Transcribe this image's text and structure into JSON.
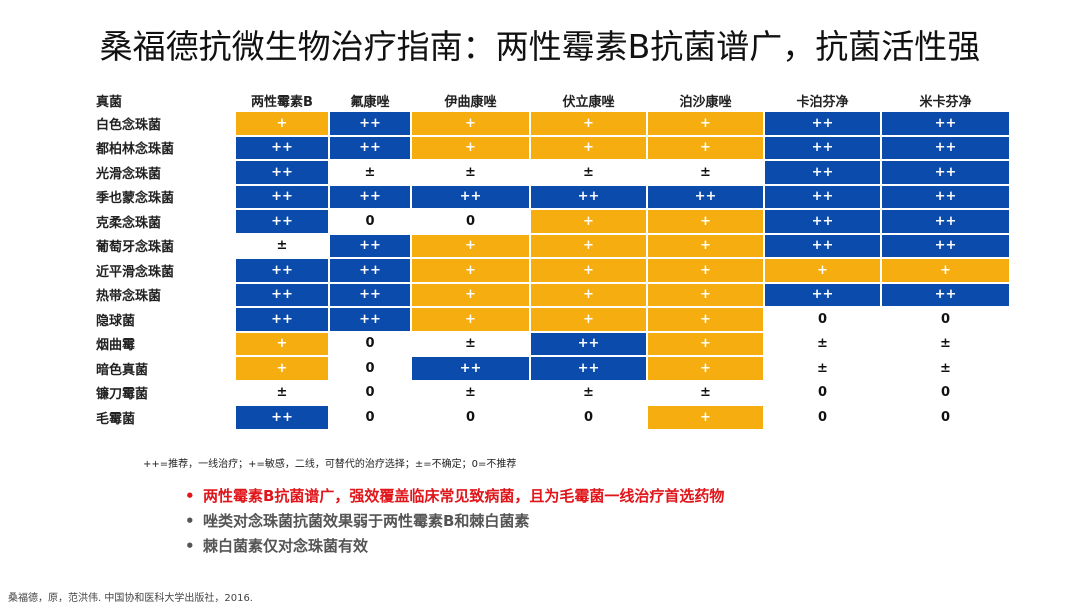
{
  "title": "桑福德抗微生物治疗指南：两性霉素B抗菌谱广，抗菌活性强",
  "colors": {
    "strong": "#0a4bab",
    "moderate": "#f5ad0f",
    "none": "#ffffff"
  },
  "table": {
    "corner": "真菌",
    "columns": [
      "两性霉素B",
      "氟康唑",
      "伊曲康唑",
      "伏立康唑",
      "泊沙康唑",
      "卡泊芬净",
      "米卡芬净"
    ],
    "rows": [
      {
        "name": "白色念珠菌",
        "cells": [
          "+",
          "++",
          "+",
          "+",
          "+",
          "++",
          "++"
        ]
      },
      {
        "name": "都柏林念珠菌",
        "cells": [
          "++",
          "++",
          "+",
          "+",
          "+",
          "++",
          "++"
        ]
      },
      {
        "name": "光滑念珠菌",
        "cells": [
          "++",
          "±",
          "±",
          "±",
          "±",
          "++",
          "++"
        ]
      },
      {
        "name": "季也蒙念珠菌",
        "cells": [
          "++",
          "++",
          "++",
          "++",
          "++",
          "++",
          "++"
        ]
      },
      {
        "name": "克柔念珠菌",
        "cells": [
          "++",
          "0",
          "0",
          "+",
          "+",
          "++",
          "++"
        ]
      },
      {
        "name": "葡萄牙念珠菌",
        "cells": [
          "±",
          "++",
          "+",
          "+",
          "+",
          "++",
          "++"
        ]
      },
      {
        "name": "近平滑念珠菌",
        "cells": [
          "++",
          "++",
          "+",
          "+",
          "+",
          "+",
          "+"
        ]
      },
      {
        "name": "热带念珠菌",
        "cells": [
          "++",
          "++",
          "+",
          "+",
          "+",
          "++",
          "++"
        ]
      },
      {
        "name": "隐球菌",
        "cells": [
          "++",
          "++",
          "+",
          "+",
          "+",
          "0",
          "0"
        ]
      },
      {
        "name": "烟曲霉",
        "cells": [
          "+",
          "0",
          "±",
          "++",
          "+",
          "±",
          "±"
        ]
      },
      {
        "name": "暗色真菌",
        "cells": [
          "+",
          "0",
          "++",
          "++",
          "+",
          "±",
          "±"
        ]
      },
      {
        "name": "镰刀霉菌",
        "cells": [
          "±",
          "0",
          "±",
          "±",
          "±",
          "0",
          "0"
        ]
      },
      {
        "name": "毛霉菌",
        "cells": [
          "++",
          "0",
          "0",
          "0",
          "+",
          "0",
          "0"
        ]
      }
    ]
  },
  "legend": "++=推荐，一线治疗；+=敏感，二线，可替代的治疗选择；±=不确定；0=不推荐",
  "bullets": [
    {
      "text": "两性霉素B抗菌谱广，强效覆盖临床常见致病菌，且为毛霉菌一线治疗首选药物",
      "highlight": true
    },
    {
      "text": "唑类对念珠菌抗菌效果弱于两性霉素B和棘白菌素",
      "highlight": false
    },
    {
      "text": "棘白菌素仅对念珠菌有效",
      "highlight": false
    }
  ],
  "bullet_symbol": "•",
  "source": "桑福德，原，范洪伟. 中国协和医科大学出版社，2016."
}
